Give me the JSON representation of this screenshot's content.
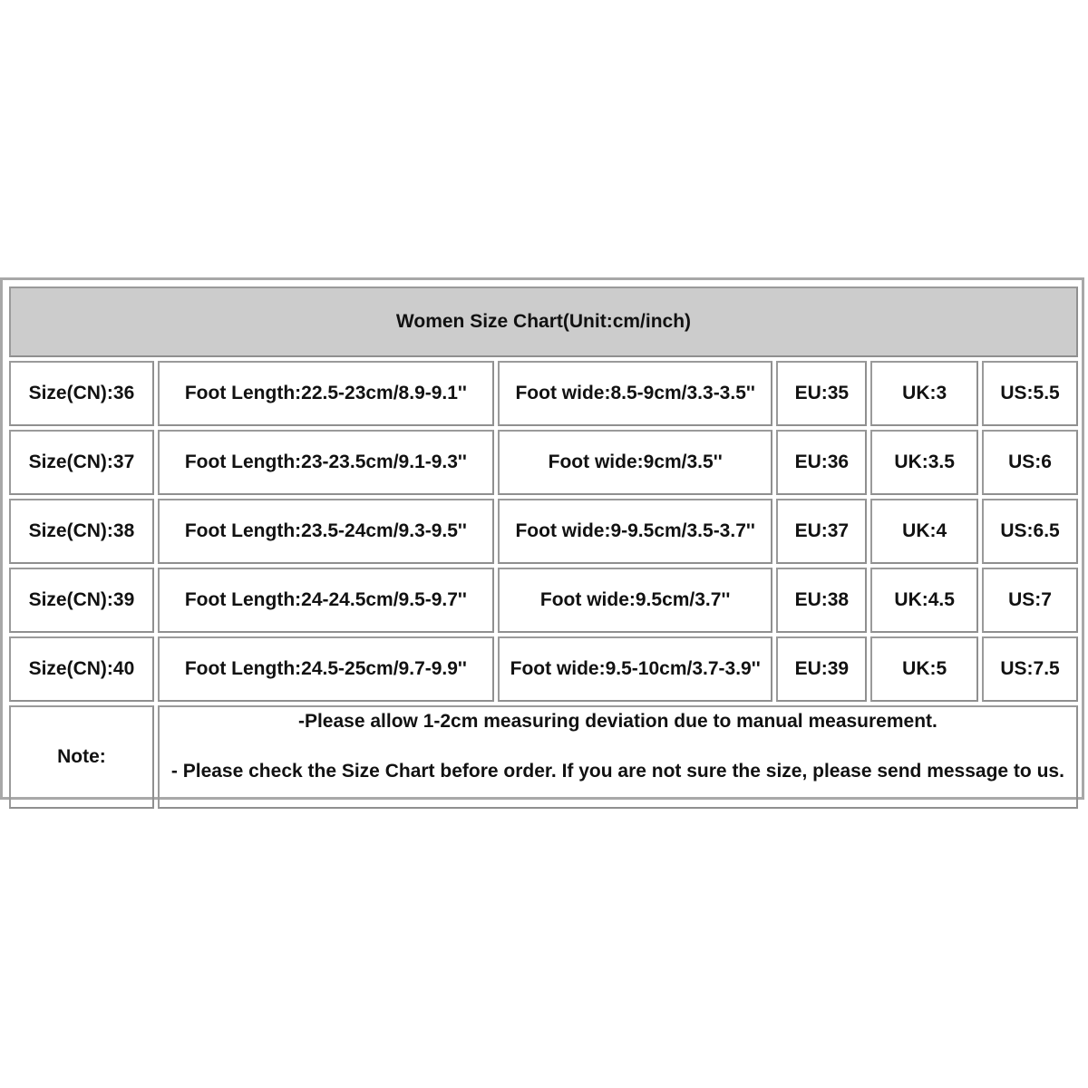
{
  "title": "Women Size Chart(Unit:cm/inch)",
  "rows": [
    [
      "Size(CN):36",
      "Foot Length:22.5-23cm/8.9-9.1''",
      "Foot wide:8.5-9cm/3.3-3.5''",
      "EU:35",
      "UK:3",
      "US:5.5"
    ],
    [
      "Size(CN):37",
      "Foot Length:23-23.5cm/9.1-9.3''",
      "Foot wide:9cm/3.5''",
      "EU:36",
      "UK:3.5",
      "US:6"
    ],
    [
      "Size(CN):38",
      "Foot Length:23.5-24cm/9.3-9.5''",
      "Foot wide:9-9.5cm/3.5-3.7''",
      "EU:37",
      "UK:4",
      "US:6.5"
    ],
    [
      "Size(CN):39",
      "Foot Length:24-24.5cm/9.5-9.7''",
      "Foot wide:9.5cm/3.7''",
      "EU:38",
      "UK:4.5",
      "US:7"
    ],
    [
      "Size(CN):40",
      "Foot Length:24.5-25cm/9.7-9.9''",
      "Foot wide:9.5-10cm/3.7-3.9''",
      "EU:39",
      "UK:5",
      "US:7.5"
    ]
  ],
  "note": {
    "label": "Note:",
    "line1": "-Please allow 1-2cm measuring deviation due to manual measurement.",
    "line2": "- Please check the Size Chart before order. If you are not sure the size, please send message to us."
  }
}
